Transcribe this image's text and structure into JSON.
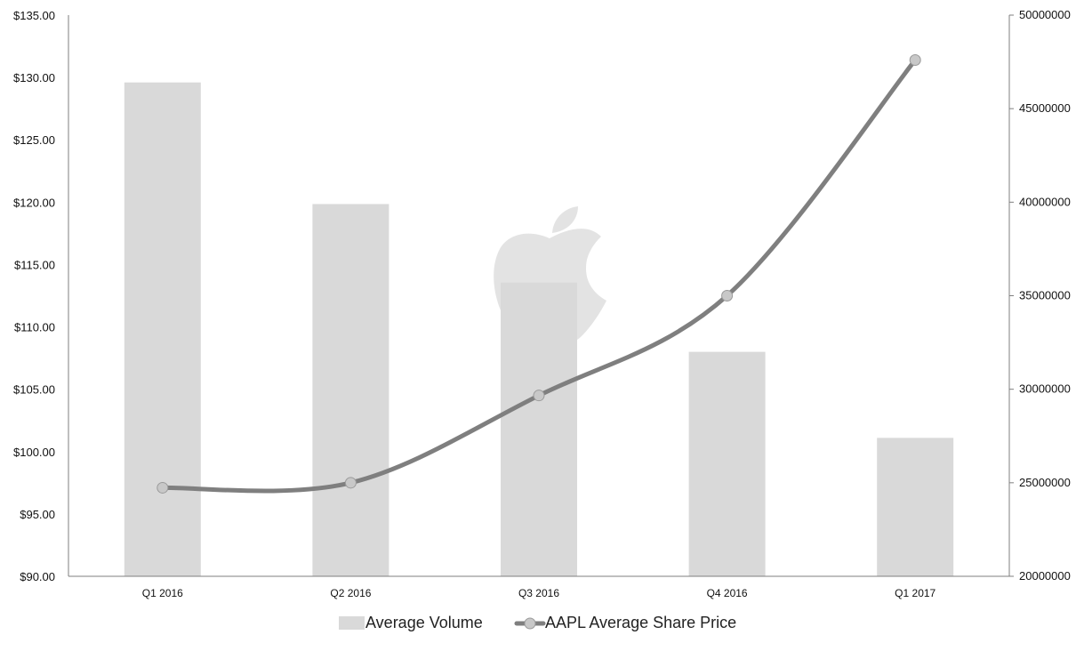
{
  "chart_data": {
    "type": "bar+line",
    "title": "",
    "xlabel": "",
    "categories": [
      "Q1 2016",
      "Q2 2016",
      "Q3 2016",
      "Q4 2016",
      "Q1 2017"
    ],
    "series": [
      {
        "name": "Average Volume",
        "type": "bar",
        "axis": "right",
        "values": [
          46400000,
          39900000,
          35700000,
          32000000,
          27400000
        ]
      },
      {
        "name": "AAPL Average Share Price",
        "type": "line",
        "axis": "left",
        "smooth": true,
        "markers": true,
        "values": [
          97.1,
          97.5,
          104.5,
          112.5,
          131.4
        ]
      }
    ],
    "y_left": {
      "label": "",
      "lim": [
        90,
        135
      ],
      "ticks": [
        90,
        95,
        100,
        105,
        110,
        115,
        120,
        125,
        130,
        135
      ],
      "tick_labels": [
        "$90.00",
        "$95.00",
        "$100.00",
        "$105.00",
        "$110.00",
        "$115.00",
        "$120.00",
        "$125.00",
        "$130.00",
        "$135.00"
      ]
    },
    "y_right": {
      "label": "",
      "lim": [
        20000000,
        50000000
      ],
      "ticks": [
        20000000,
        25000000,
        30000000,
        35000000,
        40000000,
        45000000,
        50000000
      ],
      "tick_labels": [
        "20000000",
        "25000000",
        "30000000",
        "35000000",
        "40000000",
        "45000000",
        "50000000"
      ]
    },
    "grid": false,
    "legend_position": "bottom",
    "colors": {
      "bar": "#d9d9d9",
      "line": "#7f7f7f",
      "marker": "#c8c8c8",
      "axis": "#7f7f7f",
      "watermark": "#b0b0b0"
    },
    "watermark_icon": "apple-logo-icon"
  }
}
